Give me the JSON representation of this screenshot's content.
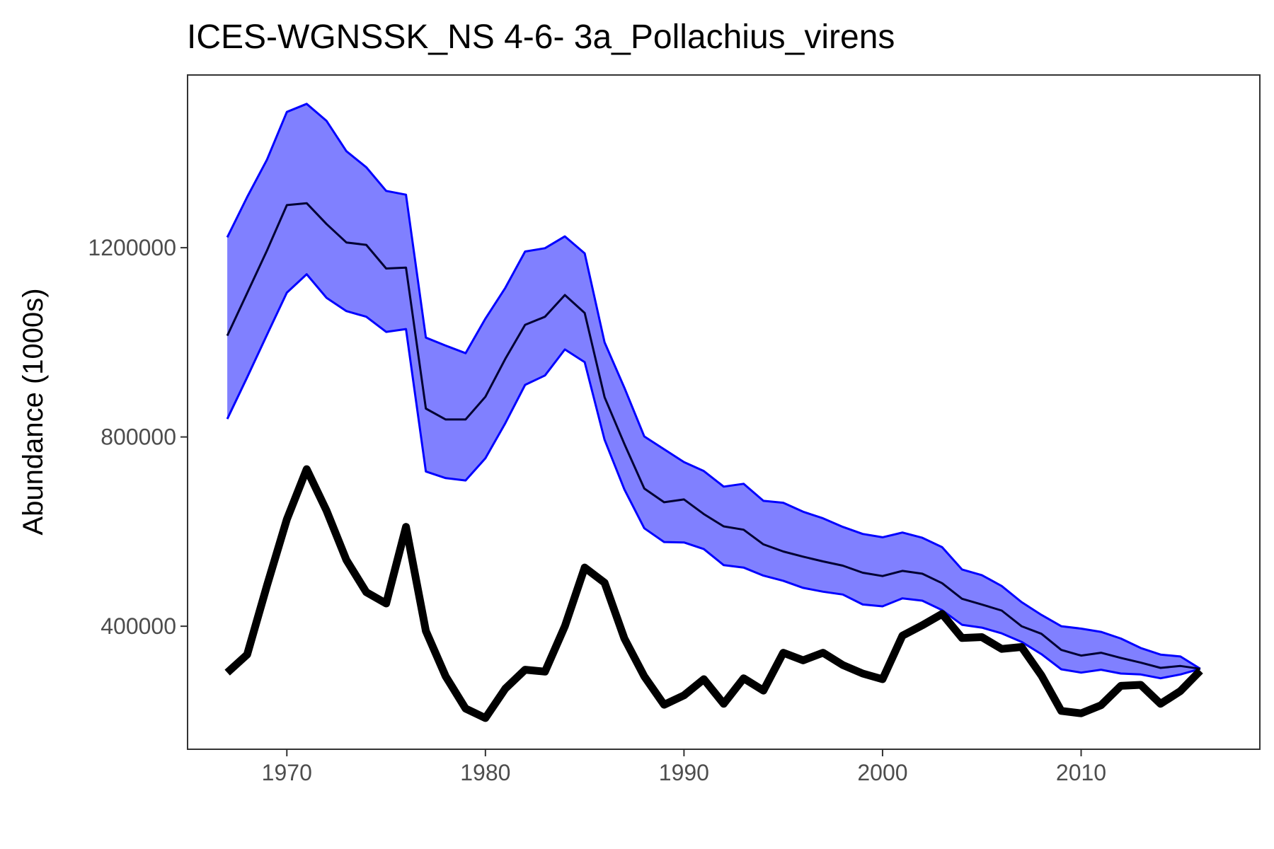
{
  "chart_data": {
    "type": "line",
    "title": "ICES-WGNSSK_NS 4-6- 3a_Pollachius_virens",
    "xlabel": "",
    "ylabel": "Abundance (1000s)",
    "xlim": [
      1965,
      2019
    ],
    "ylim": [
      140000,
      1565000
    ],
    "x_ticks": [
      1970,
      1980,
      1990,
      2000,
      2010
    ],
    "y_ticks": [
      400000,
      800000,
      1200000
    ],
    "grid": false,
    "legend": "none",
    "years": [
      1967,
      1968,
      1969,
      1970,
      1971,
      1972,
      1973,
      1974,
      1975,
      1976,
      1977,
      1978,
      1979,
      1980,
      1981,
      1982,
      1983,
      1984,
      1985,
      1986,
      1987,
      1988,
      1989,
      1990,
      1991,
      1992,
      1993,
      1994,
      1995,
      1996,
      1997,
      1998,
      1999,
      2000,
      2001,
      2002,
      2003,
      2004,
      2005,
      2006,
      2007,
      2008,
      2009,
      2010,
      2011,
      2012,
      2013,
      2014,
      2015,
      2016
    ],
    "band": {
      "color": "#0000ff",
      "fill": "#8080ff",
      "upper": [
        1222000,
        1307000,
        1386000,
        1487000,
        1504000,
        1468000,
        1404000,
        1370000,
        1320000,
        1312000,
        1010000,
        993000,
        977000,
        1050000,
        1115000,
        1192000,
        1199000,
        1224000,
        1188000,
        1000000,
        904000,
        801000,
        774000,
        747000,
        728000,
        695000,
        701000,
        665000,
        661000,
        642000,
        628000,
        610000,
        595000,
        588000,
        598000,
        587000,
        567000,
        520000,
        508000,
        485000,
        451000,
        424000,
        400000,
        395000,
        388000,
        374000,
        354000,
        340000,
        336000,
        310000
      ],
      "lower": [
        838000,
        926000,
        1016000,
        1105000,
        1144000,
        1094000,
        1066000,
        1054000,
        1022000,
        1028000,
        727000,
        713000,
        708000,
        755000,
        829000,
        910000,
        930000,
        985000,
        958000,
        794000,
        689000,
        607000,
        578000,
        577000,
        563000,
        529000,
        524000,
        507000,
        496000,
        481000,
        473000,
        467000,
        446000,
        442000,
        459000,
        454000,
        434000,
        403000,
        397000,
        385000,
        367000,
        341000,
        309000,
        302000,
        308000,
        300000,
        298000,
        290000,
        298000,
        310000
      ]
    },
    "series": [
      {
        "color": "#000033",
        "values": [
          1014000,
          1104000,
          1194000,
          1290000,
          1294000,
          1250000,
          1211000,
          1206000,
          1156000,
          1158000,
          860000,
          837000,
          837000,
          885000,
          965000,
          1037000,
          1054000,
          1100000,
          1062000,
          884000,
          785000,
          691000,
          662000,
          668000,
          637000,
          611000,
          604000,
          573000,
          558000,
          547000,
          537000,
          528000,
          513000,
          506000,
          517000,
          511000,
          491000,
          458000,
          446000,
          433000,
          400000,
          384000,
          350000,
          338000,
          344000,
          333000,
          323000,
          312000,
          316000,
          310000
        ]
      },
      {
        "color": "#000000",
        "values": [
          302000,
          340000,
          486000,
          626000,
          732000,
          644000,
          540000,
          472000,
          448000,
          610000,
          390000,
          294000,
          226000,
          206000,
          268000,
          308000,
          304000,
          400000,
          524000,
          492000,
          374000,
          294000,
          234000,
          254000,
          288000,
          236000,
          290000,
          264000,
          344000,
          328000,
          344000,
          318000,
          300000,
          288000,
          380000,
          402000,
          426000,
          375000,
          377000,
          352000,
          356000,
          296000,
          221000,
          216000,
          233000,
          274000,
          276000,
          236000,
          263000,
          306000
        ]
      }
    ]
  }
}
